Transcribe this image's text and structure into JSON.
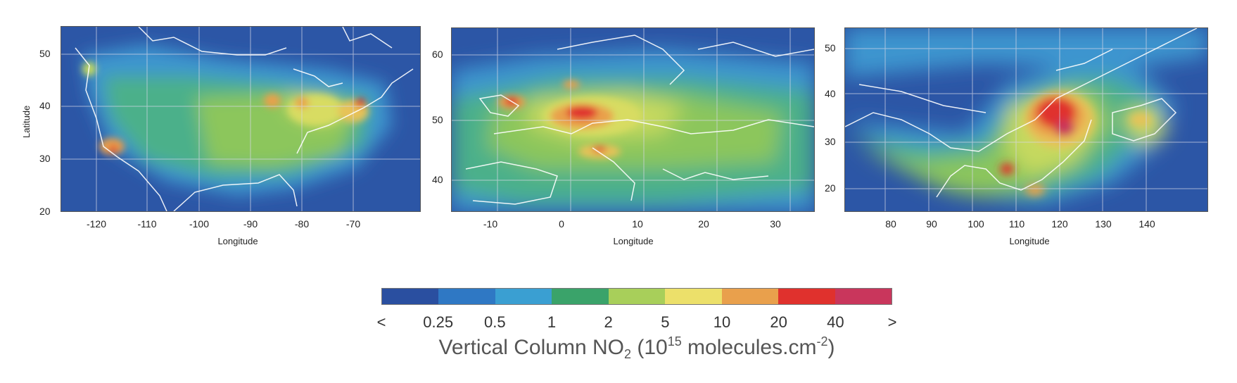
{
  "maps": [
    {
      "id": "north-america",
      "xlabel": "Longitude",
      "ylabel": "Latitude",
      "xticks": [
        "-120",
        "-110",
        "-100",
        "-90",
        "-80",
        "-70"
      ],
      "yticks": [
        "50",
        "40",
        "30",
        "20"
      ],
      "lon_range": [
        -130,
        -60
      ],
      "lat_range": [
        20,
        55
      ]
    },
    {
      "id": "europe",
      "xlabel": "Longitude",
      "ylabel": "",
      "xticks": [
        "-10",
        "0",
        "10",
        "20",
        "30"
      ],
      "yticks": [
        "60",
        "50",
        "40"
      ],
      "lon_range": [
        -15,
        35
      ],
      "lat_range": [
        35,
        65
      ]
    },
    {
      "id": "east-asia",
      "xlabel": "Longitude",
      "ylabel": "",
      "xticks": [
        "80",
        "90",
        "100",
        "110",
        "120",
        "130",
        "140"
      ],
      "yticks": [
        "50",
        "40",
        "30",
        "20"
      ],
      "lon_range": [
        70,
        150
      ],
      "lat_range": [
        15,
        55
      ]
    }
  ],
  "colorbar": {
    "labels": [
      "<",
      "0.25",
      "0.5",
      "1",
      "2",
      "5",
      "10",
      "20",
      "40",
      ">"
    ],
    "colors": [
      "#2a4fa0",
      "#2f78c4",
      "#3a9fd2",
      "#3aa36a",
      "#a8cf5a",
      "#ece06a",
      "#e9a04c",
      "#e0312d",
      "#c9365c"
    ],
    "title_main": "Vertical Column NO",
    "title_sub": "2",
    "title_mid": " (10",
    "title_sup": "15",
    "title_units": " molecules.cm",
    "title_sup2": "-2",
    "title_end": ")"
  }
}
